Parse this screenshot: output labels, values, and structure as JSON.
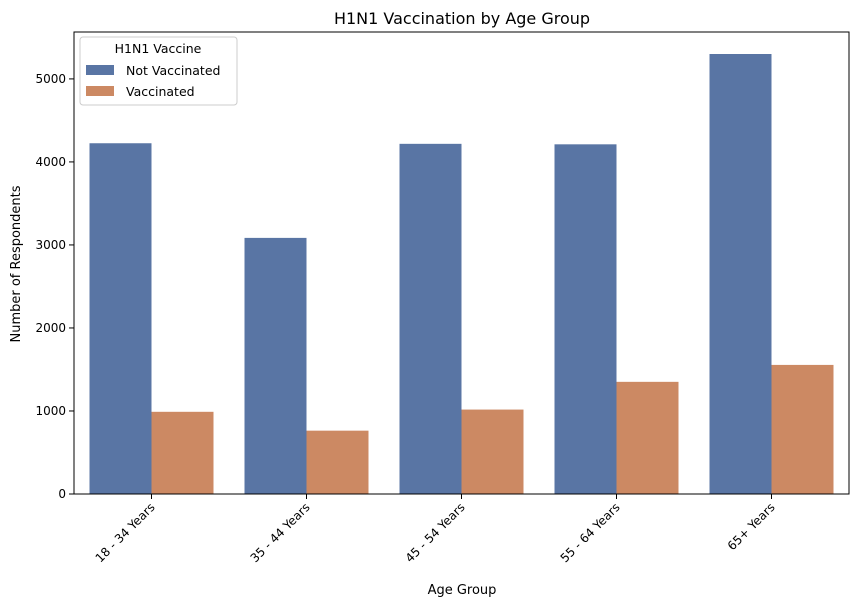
{
  "chart_data": {
    "type": "bar",
    "title": "H1N1 Vaccination by Age Group",
    "xlabel": "Age Group",
    "ylabel": "Number of Respondents",
    "categories": [
      "18 - 34 Years",
      "35 - 44 Years",
      "45 - 54 Years",
      "55 - 64 Years",
      "65+ Years"
    ],
    "series": [
      {
        "name": "Not Vaccinated",
        "values": [
          4225,
          3085,
          4218,
          4212,
          5300
        ],
        "color": "#5975a4"
      },
      {
        "name": "Vaccinated",
        "values": [
          990,
          763,
          1017,
          1351,
          1555
        ],
        "color": "#cc8963"
      }
    ],
    "ylim": [
      0,
      5565
    ],
    "yticks": [
      0,
      1000,
      2000,
      3000,
      4000,
      5000
    ],
    "legend": {
      "title": "H1N1 Vaccine",
      "position": "top-left"
    },
    "grid": false
  }
}
